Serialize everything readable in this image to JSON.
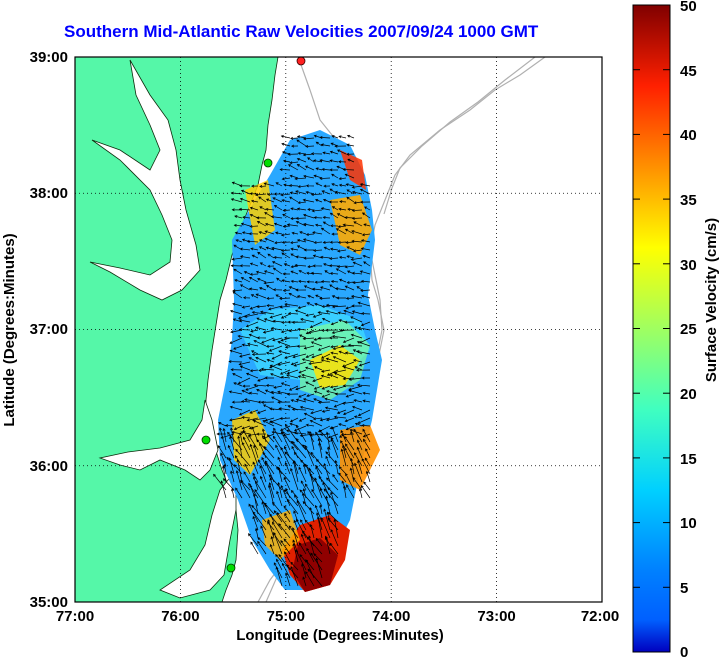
{
  "title": "Southern Mid-Atlantic Raw Velocities 2007/09/24 1000 GMT",
  "x_axis": {
    "label": "Longitude (Degrees:Minutes)",
    "ticks": [
      "77:00",
      "76:00",
      "75:00",
      "74:00",
      "73:00",
      "72:00"
    ]
  },
  "y_axis": {
    "label": "Latitude (Degrees:Minutes)",
    "ticks": [
      "39:00",
      "38:00",
      "37:00",
      "36:00",
      "35:00"
    ]
  },
  "colorbar": {
    "label": "Surface Velocity (cm/s)",
    "min": 0,
    "max": 50,
    "ticks": [
      "50",
      "45",
      "40",
      "35",
      "30",
      "25",
      "20",
      "15",
      "10",
      "5",
      "0"
    ],
    "colormap": "jet"
  },
  "map": {
    "lon_range": [
      -77,
      -72
    ],
    "lat_range": [
      35,
      39
    ],
    "grid": "dotted",
    "land_color": "#55f7a8",
    "bathymetry_color": "#b8b8b8",
    "site_marker_color": "#00dd00"
  }
}
